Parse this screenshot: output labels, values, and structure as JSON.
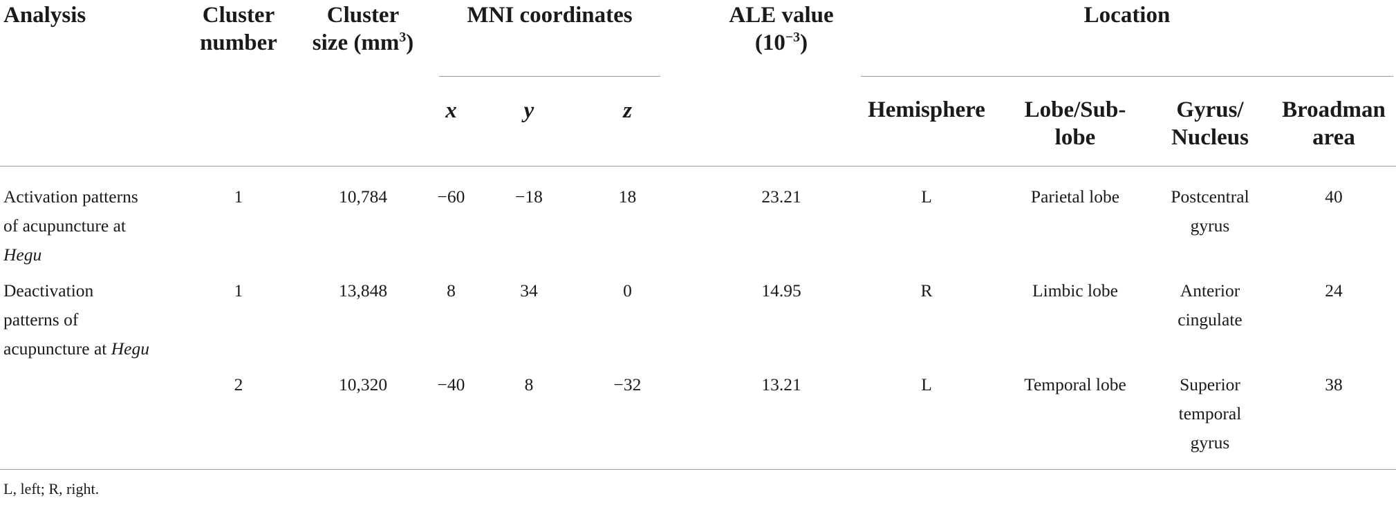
{
  "table": {
    "headers": {
      "analysis": "Analysis",
      "cluster_number": [
        "Cluster",
        "number"
      ],
      "cluster_size": [
        "Cluster",
        "size (mm",
        "3",
        ")"
      ],
      "mni": "MNI coordinates",
      "mni_x": "x",
      "mni_y": "y",
      "mni_z": "z",
      "ale": [
        "ALE value",
        "(10",
        "−3",
        ")"
      ],
      "location": "Location",
      "hemisphere": "Hemisphere",
      "lobe": [
        "Lobe/Sub-",
        "lobe"
      ],
      "gyrus": [
        "Gyrus/",
        "Nucleus"
      ],
      "broadman": [
        "Broadman",
        "area"
      ]
    },
    "rows": [
      {
        "analysis": [
          "Activation patterns",
          "of acupuncture at",
          ""
        ],
        "analysis_italic": "Hegu",
        "cluster_number": "1",
        "cluster_size": "10,784",
        "x": "−60",
        "y": "−18",
        "z": "18",
        "ale": "23.21",
        "hemisphere": "L",
        "lobe": "Parietal lobe",
        "gyrus": [
          "Postcentral",
          "gyrus"
        ],
        "broadman": "40"
      },
      {
        "analysis": [
          "Deactivation",
          "patterns of",
          "acupuncture at "
        ],
        "analysis_italic": "Hegu",
        "cluster_number": "1",
        "cluster_size": "13,848",
        "x": "8",
        "y": "34",
        "z": "0",
        "ale": "14.95",
        "hemisphere": "R",
        "lobe": "Limbic lobe",
        "gyrus": [
          "Anterior",
          "cingulate"
        ],
        "broadman": "24"
      },
      {
        "cluster_number": "2",
        "cluster_size": "10,320",
        "x": "−40",
        "y": "8",
        "z": "−32",
        "ale": "13.21",
        "hemisphere": "L",
        "lobe": "Temporal lobe",
        "gyrus": [
          "Superior",
          "temporal",
          "gyrus"
        ],
        "broadman": "38"
      }
    ],
    "footnote": "L, left; R, right."
  }
}
